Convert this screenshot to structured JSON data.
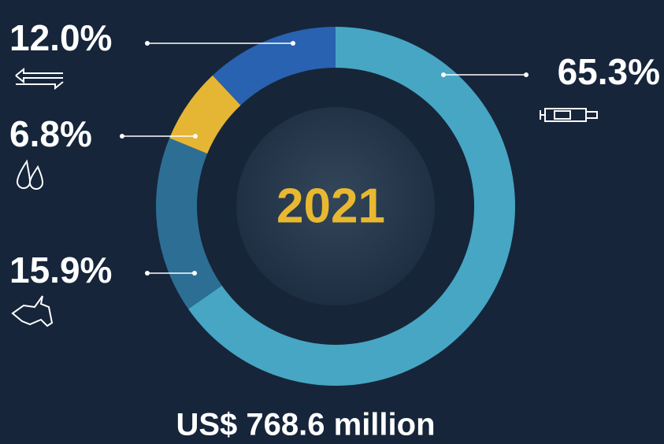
{
  "chart_data": {
    "type": "donut",
    "title": "2021",
    "subtitle": "US$ 768.6 million",
    "categories": [
      null,
      null,
      null,
      null
    ],
    "values": [
      65.3,
      15.9,
      6.8,
      12.0
    ],
    "value_labels": [
      "65.3%",
      "15.9%",
      "6.8%",
      "12.0%"
    ],
    "colors": [
      "#46a6c3",
      "#2d6e95",
      "#e5b534",
      "#2862b0"
    ]
  }
}
